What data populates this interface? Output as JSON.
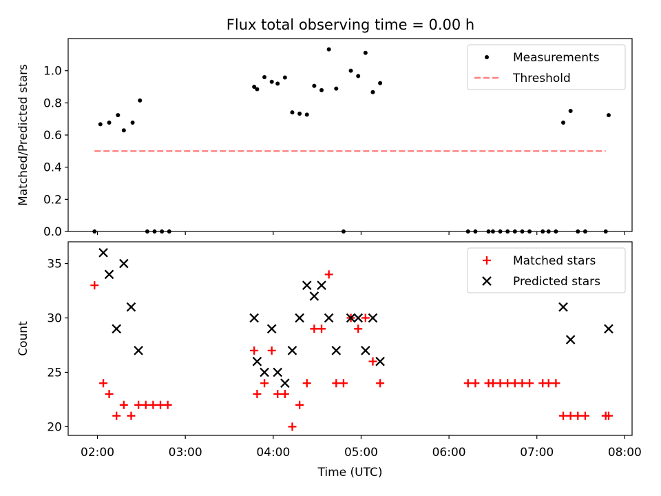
{
  "title": "Flux total observing time = 0.00 h",
  "chart_data": [
    {
      "type": "scatter",
      "ylabel": "Matched/Predicted stars",
      "xlabel": "",
      "xlim": [
        "01:40",
        "08:05"
      ],
      "ylim": [
        0,
        1.2
      ],
      "yticks": [
        0.0,
        0.2,
        0.4,
        0.6,
        0.8,
        1.0
      ],
      "ytick_labels": [
        "0.0",
        "0.2",
        "0.4",
        "0.6",
        "0.8",
        "1.0"
      ],
      "legend_position": "upper right",
      "series": [
        {
          "name": "Measurements",
          "marker": "dot",
          "color": "#000000",
          "points": [
            [
              "01:58",
              0.0
            ],
            [
              "02:02",
              0.667
            ],
            [
              "02:08",
              0.677
            ],
            [
              "02:14",
              0.724
            ],
            [
              "02:18",
              0.629
            ],
            [
              "02:24",
              0.677
            ],
            [
              "02:29",
              0.815
            ],
            [
              "02:34",
              0.0
            ],
            [
              "02:39",
              0.0
            ],
            [
              "02:44",
              0.0
            ],
            [
              "02:49",
              0.0
            ],
            [
              "03:47",
              0.9
            ],
            [
              "03:49",
              0.885
            ],
            [
              "03:54",
              0.96
            ],
            [
              "03:59",
              0.931
            ],
            [
              "04:03",
              0.92
            ],
            [
              "04:08",
              0.958
            ],
            [
              "04:13",
              0.741
            ],
            [
              "04:18",
              0.733
            ],
            [
              "04:23",
              0.727
            ],
            [
              "04:28",
              0.906
            ],
            [
              "04:33",
              0.879
            ],
            [
              "04:38",
              1.133
            ],
            [
              "04:43",
              0.889
            ],
            [
              "04:48",
              0.0
            ],
            [
              "04:53",
              1.0
            ],
            [
              "04:58",
              0.967
            ],
            [
              "05:03",
              1.111
            ],
            [
              "05:08",
              0.867
            ],
            [
              "05:13",
              0.923
            ],
            [
              "06:13",
              0.0
            ],
            [
              "06:18",
              0.0
            ],
            [
              "06:27",
              0.0
            ],
            [
              "06:30",
              0.0
            ],
            [
              "06:35",
              0.0
            ],
            [
              "06:40",
              0.0
            ],
            [
              "06:45",
              0.0
            ],
            [
              "06:50",
              0.0
            ],
            [
              "06:55",
              0.0
            ],
            [
              "07:04",
              0.0
            ],
            [
              "07:08",
              0.0
            ],
            [
              "07:13",
              0.0
            ],
            [
              "07:18",
              0.677
            ],
            [
              "07:23",
              0.75
            ],
            [
              "07:28",
              0.0
            ],
            [
              "07:33",
              0.0
            ],
            [
              "07:47",
              0.0
            ],
            [
              "07:49",
              0.724
            ]
          ]
        },
        {
          "name": "Threshold",
          "line": "dashed",
          "color": "#ff7f7f",
          "points": [
            [
              "01:58",
              0.5
            ],
            [
              "07:47",
              0.5
            ]
          ]
        }
      ]
    },
    {
      "type": "scatter",
      "ylabel": "Count",
      "xlabel": "Time (UTC)",
      "xlim": [
        "01:40",
        "08:05"
      ],
      "ylim": [
        19.2,
        37.0
      ],
      "xticks": [
        "02:00",
        "03:00",
        "04:00",
        "05:00",
        "06:00",
        "07:00",
        "08:00"
      ],
      "yticks": [
        20,
        25,
        30,
        35
      ],
      "ytick_labels": [
        "20",
        "25",
        "30",
        "35"
      ],
      "legend_position": "upper right",
      "series": [
        {
          "name": "Matched stars",
          "marker": "plus",
          "color": "#ff0000",
          "points": [
            [
              "01:58",
              33
            ],
            [
              "02:04",
              24
            ],
            [
              "02:08",
              23
            ],
            [
              "02:13",
              21
            ],
            [
              "02:18",
              22
            ],
            [
              "02:23",
              21
            ],
            [
              "02:28",
              22
            ],
            [
              "02:33",
              22
            ],
            [
              "02:38",
              22
            ],
            [
              "02:43",
              22
            ],
            [
              "02:48",
              22
            ],
            [
              "03:47",
              27
            ],
            [
              "03:49",
              23
            ],
            [
              "03:54",
              24
            ],
            [
              "03:59",
              27
            ],
            [
              "04:03",
              23
            ],
            [
              "04:08",
              23
            ],
            [
              "04:13",
              20
            ],
            [
              "04:18",
              22
            ],
            [
              "04:23",
              24
            ],
            [
              "04:28",
              29
            ],
            [
              "04:33",
              29
            ],
            [
              "04:38",
              34
            ],
            [
              "04:43",
              24
            ],
            [
              "04:48",
              24
            ],
            [
              "04:53",
              30
            ],
            [
              "04:58",
              29
            ],
            [
              "05:03",
              30
            ],
            [
              "05:08",
              26
            ],
            [
              "05:13",
              24
            ],
            [
              "06:13",
              24
            ],
            [
              "06:18",
              24
            ],
            [
              "06:27",
              24
            ],
            [
              "06:30",
              24
            ],
            [
              "06:35",
              24
            ],
            [
              "06:40",
              24
            ],
            [
              "06:45",
              24
            ],
            [
              "06:50",
              24
            ],
            [
              "06:55",
              24
            ],
            [
              "07:04",
              24
            ],
            [
              "07:08",
              24
            ],
            [
              "07:13",
              24
            ],
            [
              "07:18",
              21
            ],
            [
              "07:23",
              21
            ],
            [
              "07:28",
              21
            ],
            [
              "07:33",
              21
            ],
            [
              "07:47",
              21
            ],
            [
              "07:49",
              21
            ]
          ]
        },
        {
          "name": "Predicted stars",
          "marker": "x",
          "color": "#000000",
          "points": [
            [
              "02:04",
              36
            ],
            [
              "02:08",
              34
            ],
            [
              "02:13",
              29
            ],
            [
              "02:18",
              35
            ],
            [
              "02:23",
              31
            ],
            [
              "02:28",
              27
            ],
            [
              "03:47",
              30
            ],
            [
              "03:49",
              26
            ],
            [
              "03:54",
              25
            ],
            [
              "03:59",
              29
            ],
            [
              "04:03",
              25
            ],
            [
              "04:08",
              24
            ],
            [
              "04:13",
              27
            ],
            [
              "04:18",
              30
            ],
            [
              "04:23",
              33
            ],
            [
              "04:28",
              32
            ],
            [
              "04:33",
              33
            ],
            [
              "04:38",
              30
            ],
            [
              "04:43",
              27
            ],
            [
              "04:53",
              30
            ],
            [
              "04:58",
              30
            ],
            [
              "05:03",
              27
            ],
            [
              "05:08",
              30
            ],
            [
              "05:13",
              26
            ],
            [
              "07:18",
              31
            ],
            [
              "07:23",
              28
            ],
            [
              "07:49",
              29
            ]
          ]
        }
      ]
    }
  ]
}
